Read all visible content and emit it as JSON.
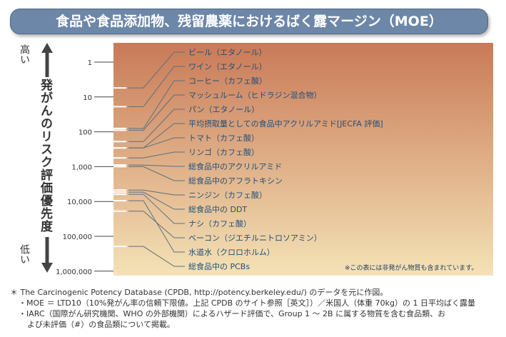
{
  "title": "食品や食品添加物、残留農薬におけるばく露マージン（MOE）",
  "axis": {
    "high": "高い",
    "low": "低い",
    "label": "発がんのリスク評価優先度"
  },
  "note": "※この表には非発がん物質も含まれています。",
  "footnotes": [
    "＊ The Carcinogenic Potency Database (CPDB, http://potency.berkeley.edu/) のデータを元に作図。",
    "・MOE ＝ LTD10（10%発がん率の信頼下限値。上記 CPDB のサイト参照［英文］）／米国人（体重 70kg）の 1 日平均ばく露量",
    "・IARC（国際がん研究機関、WHO の外部機関）によるハザード評価で、Group 1 ～ 2B に属する物質を含む食品類、お",
    "よび未評価（#）の食品類について掲載。"
  ],
  "colors": {
    "top": "#c97a57",
    "bottom": "#f4e2b6",
    "label": "#1d4f7a",
    "title_bg": "#6d87a8"
  },
  "chart_data": {
    "type": "scatter",
    "scale": "log",
    "ylim": [
      1,
      1000000
    ],
    "tick_labels": [
      "1",
      "10",
      "100",
      "1,000",
      "10,000",
      "100,000",
      "1,000,000"
    ],
    "tick_values": [
      1,
      10,
      100,
      1000,
      10000,
      100000,
      1000000
    ],
    "items": [
      {
        "label": "ビール（エタノール）",
        "moe": 5.5
      },
      {
        "label": "ワイン（エタノール）",
        "moe": 19
      },
      {
        "label": "コーヒー（カフェ酸）",
        "moe": 80
      },
      {
        "label": "マッシュルーム（ヒドラジン混合物）",
        "moe": 90
      },
      {
        "label": "パン（エタノール）",
        "moe": 190
      },
      {
        "label": "平均摂取量としての食品中アクリルアミド[JECFA 評価]",
        "moe": 290
      },
      {
        "label": "トマト（カフェ酸）",
        "moe": 290
      },
      {
        "label": "リンゴ（カフェ酸）",
        "moe": 560
      },
      {
        "label": "総食品中のアクリルアミド",
        "moe": 900
      },
      {
        "label": "総食品中のアフラトキシン",
        "moe": 1000
      },
      {
        "label": "ニンジン（カフェ酸）",
        "moe": 4700
      },
      {
        "label": "総食品中の DDT",
        "moe": 5400
      },
      {
        "label": "ナシ（カフェ酸）",
        "moe": 6200
      },
      {
        "label": "ベーコン（ジエチルニトロソアミン）",
        "moe": 19000
      },
      {
        "label": "水道水（クロロホルム）",
        "moe": 9500
      },
      {
        "label": "総食品中の PCBs",
        "moe": 195000
      }
    ]
  }
}
